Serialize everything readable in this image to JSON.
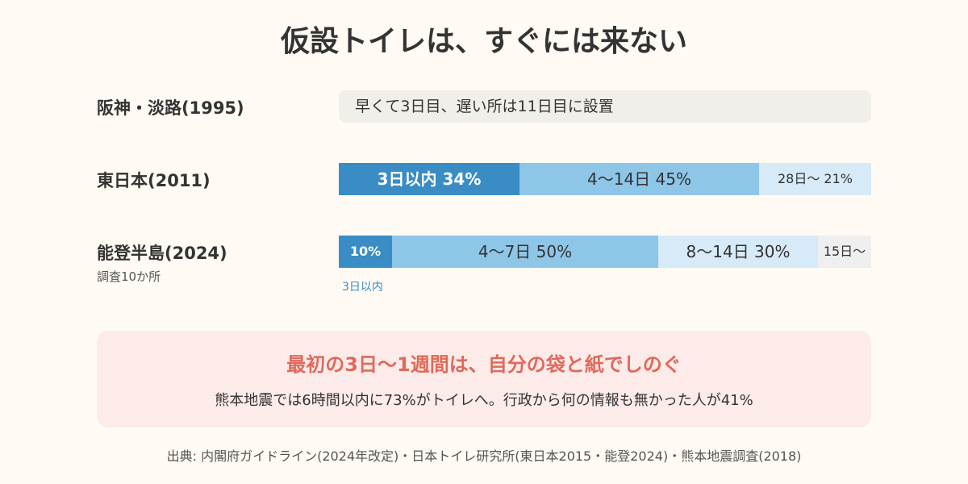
{
  "title": "仮設トイレは、すぐには来ない",
  "colors": {
    "background": "#fffbf4",
    "seg_dark": "#3a8cc4",
    "seg_mid": "#8ec6e8",
    "seg_light": "#d6eaf8",
    "seg_gray": "#efefef",
    "note_bg": "#f1efea",
    "callout_bg": "#fdebea",
    "callout_text": "#e06a5a"
  },
  "rows": {
    "hanshin": {
      "label": "阪神・淡路(1995)",
      "note": "早くて3日目、遅い所は11日目に設置"
    },
    "higashi": {
      "label": "東日本(2011)"
    },
    "noto": {
      "label": "能登半島(2024)",
      "sublabel": "調査10か所",
      "first_segment_note": "3日以内"
    }
  },
  "chart_data": {
    "type": "bar",
    "orientation": "horizontal-stacked-percent",
    "rows": [
      {
        "name": "東日本(2011)",
        "segments": [
          {
            "category": "3日以内",
            "value": 34,
            "label": "3日以内 34%",
            "color": "#3a8cc4",
            "text_color": "#ffffff",
            "bold": true
          },
          {
            "category": "4〜14日",
            "value": 45,
            "label": "4〜14日 45%",
            "color": "#8ec6e8",
            "text_color": "#333333",
            "bold": false
          },
          {
            "category": "28日〜",
            "value": 21,
            "label": "28日〜 21%",
            "color": "#d6eaf8",
            "text_color": "#333333",
            "bold": false,
            "small": true
          }
        ]
      },
      {
        "name": "能登半島(2024)",
        "segments": [
          {
            "category": "3日以内",
            "value": 10,
            "label": "10%",
            "color": "#3a8cc4",
            "text_color": "#ffffff",
            "bold": true,
            "small": true
          },
          {
            "category": "4〜7日",
            "value": 50,
            "label": "4〜7日 50%",
            "color": "#8ec6e8",
            "text_color": "#333333",
            "bold": false
          },
          {
            "category": "8〜14日",
            "value": 30,
            "label": "8〜14日 30%",
            "color": "#d6eaf8",
            "text_color": "#333333",
            "bold": false
          },
          {
            "category": "15日〜",
            "value": 10,
            "label": "15日〜",
            "color": "#efefef",
            "text_color": "#333333",
            "bold": false,
            "small": true
          }
        ]
      }
    ]
  },
  "callout": {
    "headline": "最初の3日〜1週間は、自分の袋と紙でしのぐ",
    "body": "熊本地震では6時間以内に73%がトイレへ。行政から何の情報も無かった人が41%"
  },
  "source": "出典: 内閣府ガイドライン(2024年改定)・日本トイレ研究所(東日本2015・能登2024)・熊本地震調査(2018)"
}
